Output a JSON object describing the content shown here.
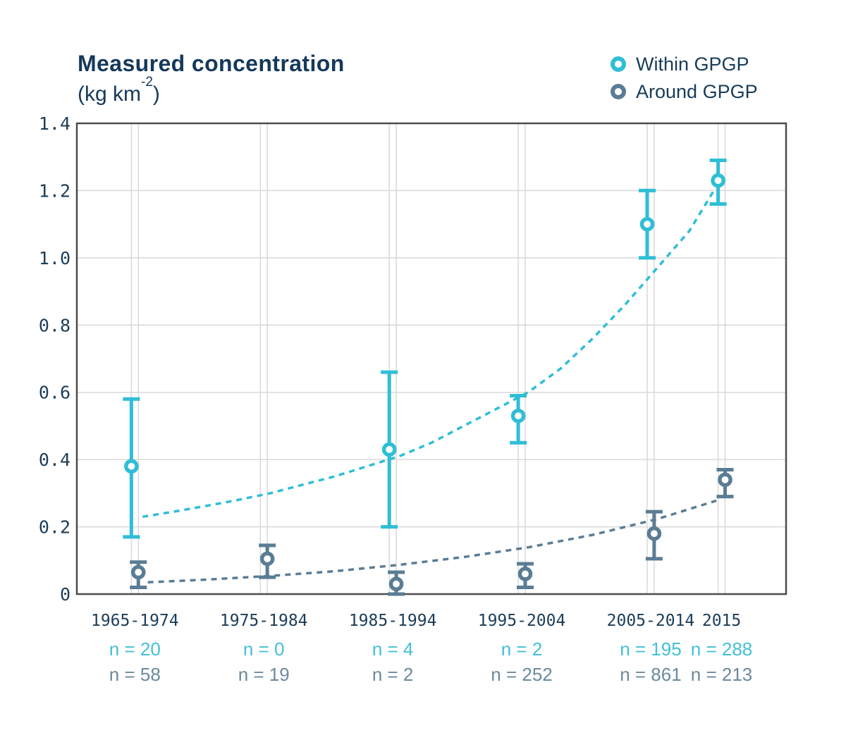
{
  "header": {
    "title": "Measured concentration",
    "unit_open": "(kg km",
    "unit_exponent": "-2",
    "unit_close": ")"
  },
  "legend": {
    "items": [
      {
        "label": "Within GPGP",
        "color": "#2fbed6"
      },
      {
        "label": "Around GPGP",
        "color": "#5a7d94"
      }
    ]
  },
  "chart_data": {
    "type": "scatter",
    "subtype": "means-with-error-bars-and-trend",
    "title": "Measured concentration",
    "ylabel": "kg km^-2",
    "legend_position": "top-right",
    "grid": true,
    "x_axis": {
      "range_years": [
        1965,
        2020
      ]
    },
    "y_axis": {
      "range": [
        0,
        1.4
      ],
      "ticks": [
        {
          "value": 1.4,
          "label": "1.4"
        },
        {
          "value": 1.2,
          "label": "1.2"
        },
        {
          "value": 1.0,
          "label": "1.0"
        },
        {
          "value": 0.8,
          "label": "0.8"
        },
        {
          "value": 0.6,
          "label": "0.6"
        },
        {
          "value": 0.4,
          "label": "0.4"
        },
        {
          "value": 0.2,
          "label": "0.2"
        },
        {
          "value": 0,
          "label": "0"
        }
      ]
    },
    "categories": [
      {
        "label": "1965-1974",
        "center_year": 1969.5
      },
      {
        "label": "1975-1984",
        "center_year": 1979.5
      },
      {
        "label": "1985-1994",
        "center_year": 1989.5
      },
      {
        "label": "1995-2004",
        "center_year": 1999.5
      },
      {
        "label": "2005-2014",
        "center_year": 2009.5
      },
      {
        "label": "2015",
        "center_year": 2015
      }
    ],
    "series": [
      {
        "name": "Within GPGP",
        "color": "#2fbed6",
        "n_color": "#43c1d5",
        "offset_years": -0.27,
        "points": [
          {
            "category": "1965-1974",
            "mean": 0.38,
            "lo": 0.17,
            "hi": 0.58,
            "n": 20
          },
          {
            "category": "1975-1984",
            "mean": null,
            "lo": null,
            "hi": null,
            "n": 0
          },
          {
            "category": "1985-1994",
            "mean": 0.43,
            "lo": 0.2,
            "hi": 0.66,
            "n": 4
          },
          {
            "category": "1995-2004",
            "mean": 0.53,
            "lo": 0.45,
            "hi": 0.59,
            "n": 2
          },
          {
            "category": "2005-2014",
            "mean": 1.1,
            "lo": 1.0,
            "hi": 1.2,
            "n": 195
          },
          {
            "category": "2015",
            "mean": 1.23,
            "lo": 1.16,
            "hi": 1.29,
            "n": 288
          }
        ],
        "n_labels": [
          "n = 20",
          "n = 0",
          "n = 4",
          "n = 2",
          "n = 195",
          "n = 288"
        ],
        "trend": [
          [
            1970.1,
            0.23
          ],
          [
            1972.5,
            0.245
          ],
          [
            1975,
            0.262
          ],
          [
            1977.5,
            0.28
          ],
          [
            1980,
            0.3
          ],
          [
            1982.5,
            0.325
          ],
          [
            1985,
            0.35
          ],
          [
            1987.5,
            0.38
          ],
          [
            1990,
            0.41
          ],
          [
            1992.5,
            0.45
          ],
          [
            1995,
            0.5
          ],
          [
            1997.5,
            0.55
          ],
          [
            2000,
            0.6
          ],
          [
            2002.5,
            0.67
          ],
          [
            2005,
            0.76
          ],
          [
            2007.5,
            0.86
          ],
          [
            2010,
            0.97
          ],
          [
            2012.5,
            1.08
          ],
          [
            2014.4,
            1.2
          ]
        ]
      },
      {
        "name": "Around GPGP",
        "color": "#5a7d94",
        "n_color": "#6b8a9d",
        "offset_years": 0.27,
        "points": [
          {
            "category": "1965-1974",
            "mean": 0.065,
            "lo": 0.02,
            "hi": 0.095,
            "n": 58
          },
          {
            "category": "1975-1984",
            "mean": 0.105,
            "lo": 0.05,
            "hi": 0.145,
            "n": 19
          },
          {
            "category": "1985-1994",
            "mean": 0.03,
            "lo": 0.0,
            "hi": 0.065,
            "n": 2
          },
          {
            "category": "1995-2004",
            "mean": 0.06,
            "lo": 0.02,
            "hi": 0.09,
            "n": 252
          },
          {
            "category": "2005-2014",
            "mean": 0.18,
            "lo": 0.105,
            "hi": 0.245,
            "n": 861
          },
          {
            "category": "2015",
            "mean": 0.34,
            "lo": 0.29,
            "hi": 0.37,
            "n": 213
          }
        ],
        "n_labels": [
          "n = 58",
          "n = 19",
          "n = 2",
          "n = 252",
          "n = 861",
          "n = 213"
        ],
        "trend": [
          [
            1970.5,
            0.035
          ],
          [
            1975,
            0.043
          ],
          [
            1980,
            0.054
          ],
          [
            1985,
            0.068
          ],
          [
            1990,
            0.087
          ],
          [
            1995,
            0.11
          ],
          [
            2000,
            0.139
          ],
          [
            2005,
            0.176
          ],
          [
            2010,
            0.223
          ],
          [
            2014.6,
            0.278
          ]
        ]
      }
    ],
    "style": {
      "grid_color": "#d9d9d9",
      "frame_color": "#4d4d4d",
      "tick_color": "#1c3d59"
    }
  }
}
